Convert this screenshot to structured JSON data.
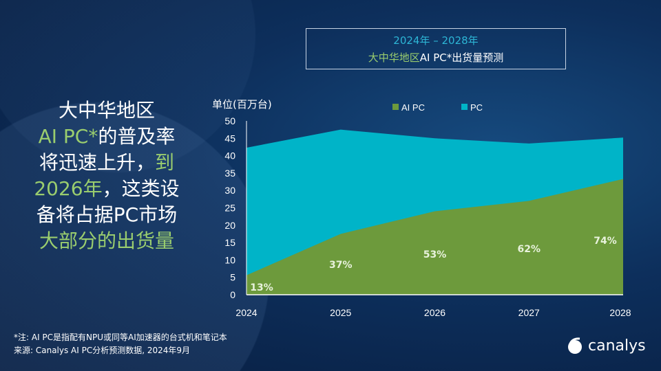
{
  "headline": {
    "l1": "大中华地区",
    "l2a": "AI PC*",
    "l2b": "的普及率",
    "l3a": "将迅速上升，",
    "l3b": "到",
    "l4a": "2026年",
    "l4b": "，这类设",
    "l5": "备将占据PC市场",
    "l6": "大部分的出货量"
  },
  "title_box": {
    "line1": "2024年 – 2028年",
    "line2a": "大中华地区",
    "line2b": "AI PC*出货量预测"
  },
  "chart_data": {
    "type": "area",
    "ylabel": "单位(百万台)",
    "categories": [
      "2024",
      "2025",
      "2026",
      "2027",
      "2028"
    ],
    "ylim": [
      0,
      50
    ],
    "yticks": [
      "0",
      "5",
      "10",
      "15",
      "20",
      "25",
      "30",
      "35",
      "40",
      "45",
      "50"
    ],
    "legend_position": "top",
    "series": [
      {
        "name": "AI PC",
        "color": "#6d9a3c",
        "values": [
          5.6,
          17.5,
          24,
          27,
          33.3
        ]
      },
      {
        "name": "PC",
        "color": "#00b4c8",
        "values": [
          42.3,
          47.5,
          45,
          43.5,
          45.2
        ]
      }
    ],
    "data_labels": [
      "13%",
      "37%",
      "53%",
      "62%",
      "74%"
    ]
  },
  "footer": {
    "note": "*注: AI PC是指配有NPU或同等AI加速器的台式机和笔记本",
    "source": "来源: Canalys AI PC分析预测数据, 2024年9月"
  },
  "logo": {
    "text": "canalys"
  }
}
